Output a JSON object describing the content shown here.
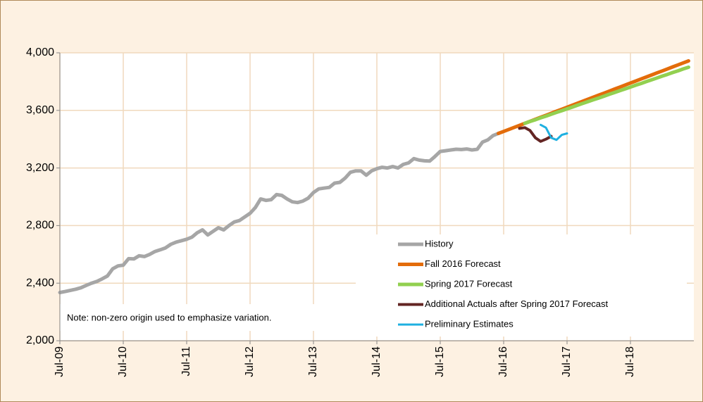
{
  "chart_data": {
    "type": "line",
    "note": "Note: non-zero origin used to emphasize variation.",
    "legend": "lower right",
    "grid": true,
    "ylim": [
      2000,
      4000
    ],
    "yticks": [
      {
        "value": 2000,
        "label": "2,000"
      },
      {
        "value": 2400,
        "label": "2,400"
      },
      {
        "value": 2800,
        "label": "2,800"
      },
      {
        "value": 3200,
        "label": "3,200"
      },
      {
        "value": 3600,
        "label": "3,600"
      },
      {
        "value": 4000,
        "label": "4,000"
      }
    ],
    "categories": [
      "Jul-09",
      null,
      null,
      null,
      null,
      null,
      null,
      null,
      null,
      null,
      null,
      null,
      "Jul-10",
      null,
      null,
      null,
      null,
      null,
      null,
      null,
      null,
      null,
      null,
      null,
      "Jul-11",
      null,
      null,
      null,
      null,
      null,
      null,
      null,
      null,
      null,
      null,
      null,
      "Jul-12",
      null,
      null,
      null,
      null,
      null,
      null,
      null,
      null,
      null,
      null,
      null,
      "Jul-13",
      null,
      null,
      null,
      null,
      null,
      null,
      null,
      null,
      null,
      null,
      null,
      "Jul-14",
      null,
      null,
      null,
      null,
      null,
      null,
      null,
      null,
      null,
      null,
      null,
      "Jul-15",
      null,
      null,
      null,
      null,
      null,
      null,
      null,
      null,
      null,
      null,
      null,
      "Jul-16",
      null,
      null,
      null,
      null,
      null,
      null,
      null,
      null,
      null,
      null,
      null,
      "Jul-17",
      null,
      null,
      null,
      null,
      null,
      null,
      null,
      null,
      null,
      null,
      null,
      "Jul-18",
      null,
      null,
      null,
      null,
      null,
      null,
      null,
      null,
      null,
      null,
      null
    ],
    "series": [
      {
        "name": "History",
        "color": "#a6a6a6",
        "width": 5,
        "values": [
          2335,
          2342,
          2350,
          2358,
          2368,
          2385,
          2400,
          2412,
          2430,
          2450,
          2500,
          2520,
          2525,
          2570,
          2568,
          2590,
          2585,
          2600,
          2620,
          2632,
          2645,
          2670,
          2685,
          2695,
          2705,
          2720,
          2750,
          2770,
          2735,
          2760,
          2785,
          2770,
          2800,
          2825,
          2835,
          2860,
          2885,
          2925,
          2985,
          2975,
          2980,
          3015,
          3010,
          2985,
          2965,
          2960,
          2970,
          2990,
          3030,
          3055,
          3060,
          3065,
          3095,
          3100,
          3130,
          3170,
          3180,
          3180,
          3150,
          3180,
          3195,
          3205,
          3200,
          3210,
          3200,
          3225,
          3235,
          3265,
          3255,
          3250,
          3248,
          3280,
          3315,
          3320,
          3325,
          3330,
          3328,
          3332,
          3325,
          3330,
          3380,
          3395,
          3425,
          3440,
          null,
          null,
          null,
          null,
          null,
          null,
          null,
          null,
          null,
          null,
          null,
          null,
          null,
          null,
          null,
          null,
          null,
          null,
          null,
          null,
          null,
          null,
          null,
          null,
          null,
          null,
          null,
          null,
          null,
          null,
          null,
          null,
          null,
          null,
          null,
          null
        ]
      },
      {
        "name": "Fall 2016 Forecast",
        "color": "#e36c0a",
        "width": 5,
        "values": [
          null,
          null,
          null,
          null,
          null,
          null,
          null,
          null,
          null,
          null,
          null,
          null,
          null,
          null,
          null,
          null,
          null,
          null,
          null,
          null,
          null,
          null,
          null,
          null,
          null,
          null,
          null,
          null,
          null,
          null,
          null,
          null,
          null,
          null,
          null,
          null,
          null,
          null,
          null,
          null,
          null,
          null,
          null,
          null,
          null,
          null,
          null,
          null,
          null,
          null,
          null,
          null,
          null,
          null,
          null,
          null,
          null,
          null,
          null,
          null,
          null,
          null,
          null,
          null,
          null,
          null,
          null,
          null,
          null,
          null,
          null,
          null,
          null,
          null,
          null,
          null,
          null,
          null,
          null,
          null,
          null,
          null,
          null,
          3440,
          3454,
          3468,
          3482,
          3496,
          3510,
          3524,
          3538,
          3552,
          3566,
          3580,
          3594,
          3608,
          3622,
          3636,
          3650,
          3664,
          3678,
          3692,
          3706,
          3720,
          3734,
          3748,
          3762,
          3776,
          3790,
          3804,
          3818,
          3832,
          3846,
          3860,
          3874,
          3888,
          3902,
          3916,
          3930,
          3944
        ]
      },
      {
        "name": "Spring 2017 Forecast",
        "color": "#92d050",
        "width": 5,
        "values": [
          null,
          null,
          null,
          null,
          null,
          null,
          null,
          null,
          null,
          null,
          null,
          null,
          null,
          null,
          null,
          null,
          null,
          null,
          null,
          null,
          null,
          null,
          null,
          null,
          null,
          null,
          null,
          null,
          null,
          null,
          null,
          null,
          null,
          null,
          null,
          null,
          null,
          null,
          null,
          null,
          null,
          null,
          null,
          null,
          null,
          null,
          null,
          null,
          null,
          null,
          null,
          null,
          null,
          null,
          null,
          null,
          null,
          null,
          null,
          null,
          null,
          null,
          null,
          null,
          null,
          null,
          null,
          null,
          null,
          null,
          null,
          null,
          null,
          null,
          null,
          null,
          null,
          null,
          null,
          null,
          null,
          null,
          null,
          null,
          null,
          null,
          null,
          null,
          3510,
          3523,
          3535,
          3548,
          3560,
          3573,
          3586,
          3598,
          3611,
          3623,
          3636,
          3649,
          3661,
          3674,
          3686,
          3699,
          3712,
          3724,
          3737,
          3749,
          3762,
          3775,
          3787,
          3800,
          3812,
          3825,
          3838,
          3850,
          3863,
          3875,
          3888,
          3900
        ]
      },
      {
        "name": "Additional Actuals after Spring 2017 Forecast",
        "color": "#632523",
        "width": 4,
        "values": [
          null,
          null,
          null,
          null,
          null,
          null,
          null,
          null,
          null,
          null,
          null,
          null,
          null,
          null,
          null,
          null,
          null,
          null,
          null,
          null,
          null,
          null,
          null,
          null,
          null,
          null,
          null,
          null,
          null,
          null,
          null,
          null,
          null,
          null,
          null,
          null,
          null,
          null,
          null,
          null,
          null,
          null,
          null,
          null,
          null,
          null,
          null,
          null,
          null,
          null,
          null,
          null,
          null,
          null,
          null,
          null,
          null,
          null,
          null,
          null,
          null,
          null,
          null,
          null,
          null,
          null,
          null,
          null,
          null,
          null,
          null,
          null,
          null,
          null,
          null,
          null,
          null,
          null,
          null,
          null,
          null,
          null,
          null,
          null,
          null,
          null,
          null,
          3475,
          3480,
          3460,
          3410,
          3385,
          3400,
          3420,
          null,
          null,
          null,
          null,
          null,
          null,
          null,
          null,
          null,
          null,
          null,
          null,
          null,
          null,
          null,
          null,
          null,
          null,
          null,
          null,
          null,
          null,
          null,
          null,
          null,
          null
        ]
      },
      {
        "name": "Preliminary Estimates",
        "color": "#1fb0e0",
        "width": 3,
        "values": [
          null,
          null,
          null,
          null,
          null,
          null,
          null,
          null,
          null,
          null,
          null,
          null,
          null,
          null,
          null,
          null,
          null,
          null,
          null,
          null,
          null,
          null,
          null,
          null,
          null,
          null,
          null,
          null,
          null,
          null,
          null,
          null,
          null,
          null,
          null,
          null,
          null,
          null,
          null,
          null,
          null,
          null,
          null,
          null,
          null,
          null,
          null,
          null,
          null,
          null,
          null,
          null,
          null,
          null,
          null,
          null,
          null,
          null,
          null,
          null,
          null,
          null,
          null,
          null,
          null,
          null,
          null,
          null,
          null,
          null,
          null,
          null,
          null,
          null,
          null,
          null,
          null,
          null,
          null,
          null,
          null,
          null,
          null,
          null,
          null,
          null,
          null,
          null,
          null,
          null,
          null,
          3500,
          3480,
          3410,
          3395,
          3430,
          3440,
          null,
          null,
          null,
          null,
          null,
          null,
          null,
          null,
          null,
          null,
          null,
          null,
          null,
          null,
          null,
          null,
          null,
          null,
          null,
          null,
          null,
          null,
          null
        ]
      }
    ]
  }
}
